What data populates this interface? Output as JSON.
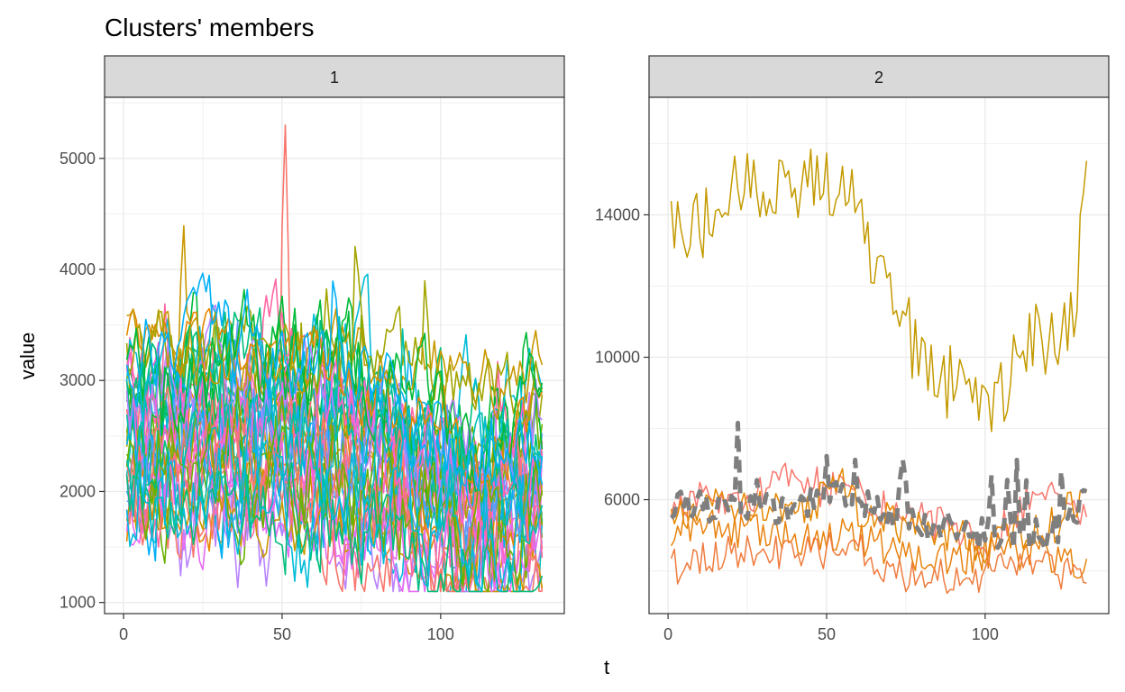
{
  "chart_data": {
    "type": "line",
    "title": "Clusters' members",
    "xlabel": "t",
    "ylabel": "value",
    "x_range": [
      1,
      132
    ],
    "facets": [
      {
        "strip_label": "1",
        "xlim": [
          -6,
          139
        ],
        "ylim": [
          900,
          5550
        ],
        "xticks": [
          0,
          50,
          100
        ],
        "yticks": [
          1000,
          2000,
          3000,
          4000,
          5000
        ],
        "series_count": 40,
        "typical_range": [
          1300,
          4700
        ],
        "max_point": {
          "x": 51,
          "y": 5300
        },
        "min_point": {
          "x": 111,
          "y": 1100
        },
        "series_colors": [
          "#F8766D",
          "#E58700",
          "#C99800",
          "#A3A500",
          "#6BB100",
          "#00BA38",
          "#00BF7D",
          "#00C0AF",
          "#00BCD8",
          "#00B0F6",
          "#619CFF",
          "#B983FF",
          "#E76BF3",
          "#FD61D1",
          "#FF67A4"
        ]
      },
      {
        "strip_label": "2",
        "xlim": [
          -6,
          139
        ],
        "ylim": [
          2800,
          17300
        ],
        "xticks": [
          0,
          50,
          100
        ],
        "yticks": [
          6000,
          10000,
          14000
        ],
        "series": [
          {
            "color": "#C49A00",
            "anchors_t": [
              1,
              10,
              20,
              30,
              40,
              48,
              55,
              60,
              65,
              72,
              80,
              88,
              95,
              100,
              105,
              110,
              116,
              122,
              128,
              132
            ],
            "anchors_v": [
              13600,
              13700,
              14800,
              14900,
              14700,
              15000,
              15000,
              14000,
              12900,
              11500,
              9800,
              9300,
              9600,
              8500,
              9000,
              10200,
              10700,
              10400,
              11500,
              15800
            ]
          },
          {
            "color": "#F8766D",
            "anchors_t": [
              1,
              20,
              40,
              50,
              60,
              70,
              80,
              90,
              100,
              110,
              120,
              132
            ],
            "anchors_v": [
              5900,
              6000,
              6600,
              6300,
              6200,
              5600,
              5600,
              5000,
              4800,
              5600,
              6300,
              5500
            ]
          },
          {
            "color": "#E58700",
            "anchors_t": [
              1,
              20,
              40,
              55,
              60,
              75,
              90,
              100,
              110,
              120,
              132
            ],
            "anchors_v": [
              5600,
              5800,
              5700,
              6400,
              5700,
              5200,
              5000,
              4700,
              5100,
              5200,
              6100
            ]
          },
          {
            "color": "#E8830F",
            "anchors_t": [
              1,
              20,
              40,
              60,
              75,
              90,
              105,
              120,
              132
            ],
            "anchors_v": [
              5100,
              5200,
              5000,
              5000,
              4500,
              4300,
              4600,
              4500,
              4300
            ]
          },
          {
            "color": "#EF7C3F",
            "anchors_t": [
              1,
              20,
              40,
              60,
              75,
              90,
              105,
              120,
              132
            ],
            "anchors_v": [
              4100,
              4600,
              4400,
              4600,
              3900,
              3800,
              4000,
              4000,
              4000
            ]
          }
        ],
        "centroid": {
          "color": "#7F7F7F",
          "dashed": true,
          "anchors_t": [
            1,
            20,
            40,
            55,
            70,
            90,
            105,
            120,
            132
          ],
          "anchors_v": [
            5900,
            5800,
            5700,
            6200,
            5600,
            5000,
            5100,
            5000,
            6000
          ]
        }
      }
    ]
  }
}
